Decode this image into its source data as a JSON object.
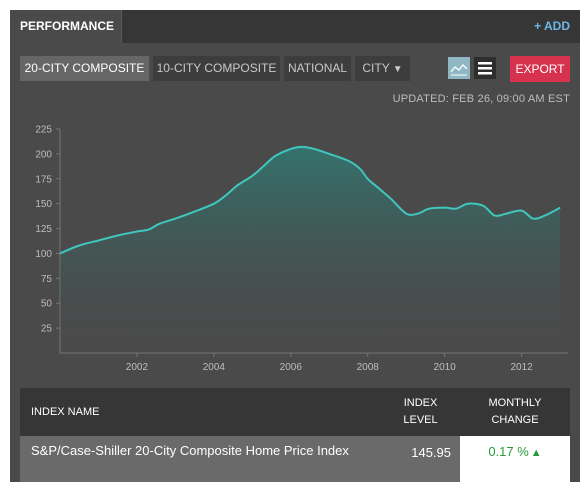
{
  "header": {
    "tab_label": "PERFORMANCE",
    "add_label": "+ ADD"
  },
  "toolbar": {
    "buttons": [
      {
        "label": "20-CITY COMPOSITE",
        "active": true
      },
      {
        "label": "10-CITY COMPOSITE",
        "active": false
      },
      {
        "label": "NATIONAL",
        "active": false
      },
      {
        "label": "CITY",
        "active": false
      }
    ],
    "city_caret": "▼",
    "view_icons": [
      "line-chart-icon",
      "list-icon"
    ],
    "export_label": "EXPORT"
  },
  "updated_text": "UPDATED: FEB 26, 09:00 AM EST",
  "colors": {
    "line": "#3fc6bd",
    "area_top": "#2f7a74",
    "area_bottom": "#4a4a4a",
    "export": "#d6324e",
    "positive": "#2b9a3a"
  },
  "chart_data": {
    "type": "area",
    "title": "",
    "xlabel": "",
    "ylabel": "",
    "xlim": [
      2000.0,
      2013.05
    ],
    "ylim": [
      0,
      225
    ],
    "y_ticks": [
      25,
      50,
      75,
      100,
      125,
      150,
      175,
      200,
      225
    ],
    "x_ticks": [
      2002,
      2004,
      2006,
      2008,
      2010,
      2012
    ],
    "grid": false,
    "series": [
      {
        "x": [
          2000.0,
          2000.5,
          2001.0,
          2001.5,
          2002.0,
          2002.3,
          2002.6,
          2003.0,
          2003.5,
          2004.0,
          2004.3,
          2004.6,
          2005.0,
          2005.3,
          2005.6,
          2006.0,
          2006.3,
          2006.6,
          2007.0,
          2007.5,
          2007.8,
          2008.0,
          2008.3,
          2008.6,
          2009.0,
          2009.3,
          2009.6,
          2010.0,
          2010.3,
          2010.6,
          2011.0,
          2011.3,
          2011.6,
          2012.0,
          2012.3,
          2012.6,
          2013.0
        ],
        "values": [
          100,
          108,
          113,
          118,
          122,
          124,
          130,
          135,
          142,
          150,
          158,
          168,
          178,
          188,
          198,
          205,
          207,
          205,
          200,
          193,
          185,
          175,
          165,
          155,
          140,
          140,
          145,
          146,
          145,
          150,
          148,
          138,
          140,
          143,
          135,
          138,
          146
        ]
      }
    ]
  },
  "table": {
    "col_name": "INDEX NAME",
    "col_level_line1": "INDEX",
    "col_level_line2": "LEVEL",
    "col_change_line1": "MONTHLY",
    "col_change_line2": "CHANGE",
    "rows": [
      {
        "name": "S&P/Case-Shiller 20-City Composite Home Price Index",
        "level": "145.95",
        "change": "0.17 %",
        "change_arrow": "▲"
      }
    ]
  }
}
